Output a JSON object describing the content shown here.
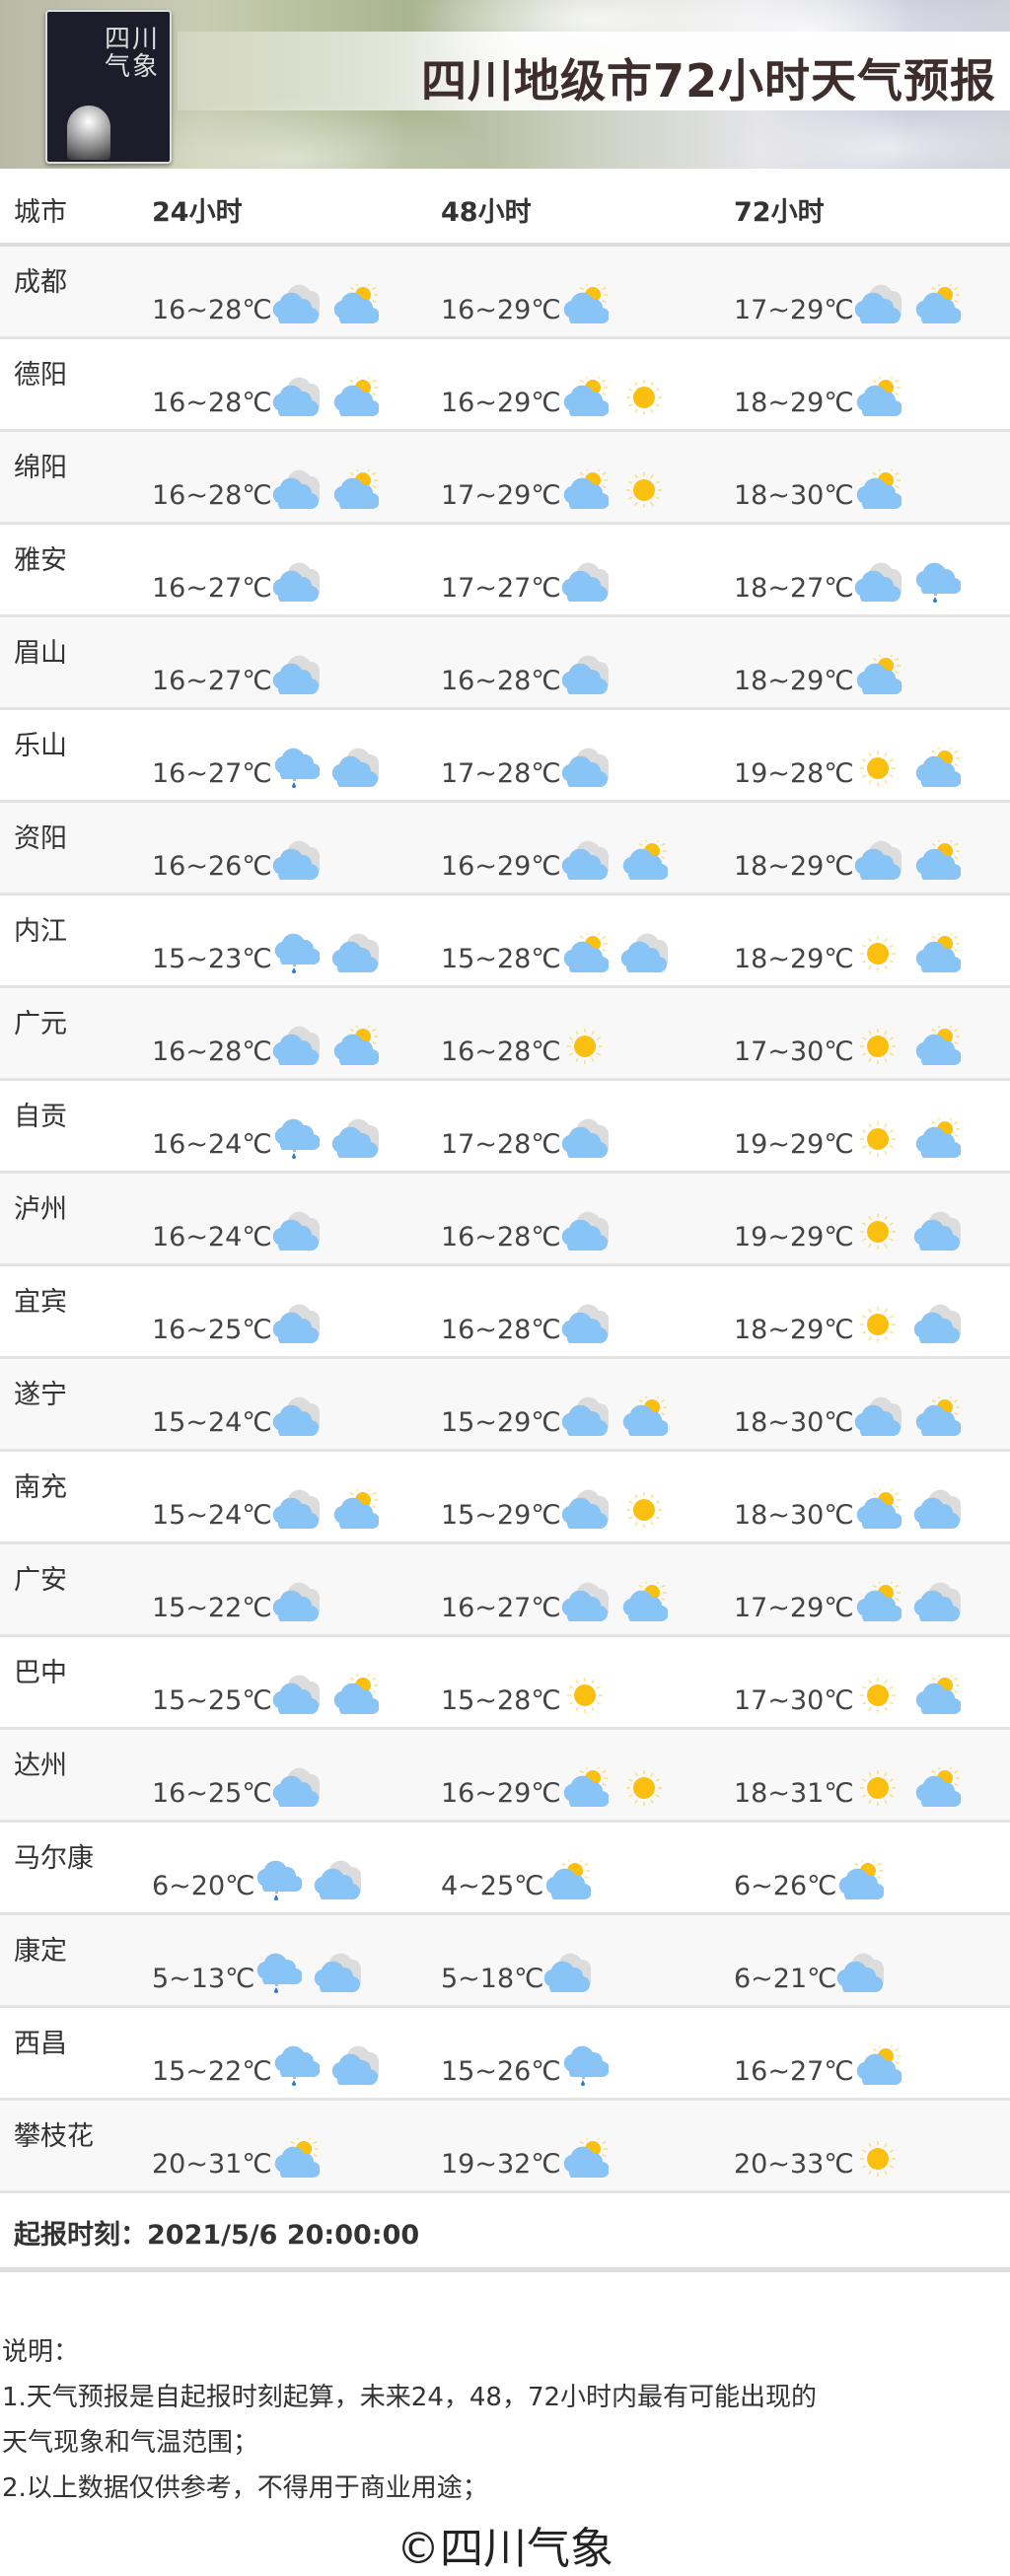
{
  "header": {
    "title": "四川地级市72小时天气预报",
    "logo_text": "四川气象"
  },
  "columns": {
    "city": "城市",
    "h24": "24小时",
    "h48": "48小时",
    "h72": "72小时"
  },
  "icon_legend": {
    "c": "cloudy-icon",
    "p": "partly-cloudy-icon",
    "s": "sunny-icon",
    "r": "shower-icon"
  },
  "colors": {
    "cloud": "#88c4f5",
    "sun": "#fbbf10",
    "back_cloud": "#dcdcdc",
    "rain": "#2c79c9"
  },
  "rows": [
    {
      "city": "成都",
      "d": [
        {
          "t": "16~28℃",
          "i": [
            "c",
            "p"
          ]
        },
        {
          "t": "16~29℃",
          "i": [
            "p"
          ]
        },
        {
          "t": "17~29℃",
          "i": [
            "c",
            "p"
          ]
        }
      ]
    },
    {
      "city": "德阳",
      "d": [
        {
          "t": "16~28℃",
          "i": [
            "c",
            "p"
          ]
        },
        {
          "t": "16~29℃",
          "i": [
            "p",
            "s"
          ]
        },
        {
          "t": "18~29℃",
          "i": [
            "p"
          ]
        }
      ]
    },
    {
      "city": "绵阳",
      "d": [
        {
          "t": "16~28℃",
          "i": [
            "c",
            "p"
          ]
        },
        {
          "t": "17~29℃",
          "i": [
            "p",
            "s"
          ]
        },
        {
          "t": "18~30℃",
          "i": [
            "p"
          ]
        }
      ]
    },
    {
      "city": "雅安",
      "d": [
        {
          "t": "16~27℃",
          "i": [
            "c"
          ]
        },
        {
          "t": "17~27℃",
          "i": [
            "c"
          ]
        },
        {
          "t": "18~27℃",
          "i": [
            "c",
            "r"
          ]
        }
      ]
    },
    {
      "city": "眉山",
      "d": [
        {
          "t": "16~27℃",
          "i": [
            "c"
          ]
        },
        {
          "t": "16~28℃",
          "i": [
            "c"
          ]
        },
        {
          "t": "18~29℃",
          "i": [
            "p"
          ]
        }
      ]
    },
    {
      "city": "乐山",
      "d": [
        {
          "t": "16~27℃",
          "i": [
            "r",
            "c"
          ]
        },
        {
          "t": "17~28℃",
          "i": [
            "c"
          ]
        },
        {
          "t": "19~28℃",
          "i": [
            "s",
            "p"
          ]
        }
      ]
    },
    {
      "city": "资阳",
      "d": [
        {
          "t": "16~26℃",
          "i": [
            "c"
          ]
        },
        {
          "t": "16~29℃",
          "i": [
            "c",
            "p"
          ]
        },
        {
          "t": "18~29℃",
          "i": [
            "c",
            "p"
          ]
        }
      ]
    },
    {
      "city": "内江",
      "d": [
        {
          "t": "15~23℃",
          "i": [
            "r",
            "c"
          ]
        },
        {
          "t": "15~28℃",
          "i": [
            "p",
            "c"
          ]
        },
        {
          "t": "18~29℃",
          "i": [
            "s",
            "p"
          ]
        }
      ]
    },
    {
      "city": "广元",
      "d": [
        {
          "t": "16~28℃",
          "i": [
            "c",
            "p"
          ]
        },
        {
          "t": "16~28℃",
          "i": [
            "s"
          ]
        },
        {
          "t": "17~30℃",
          "i": [
            "s",
            "p"
          ]
        }
      ]
    },
    {
      "city": "自贡",
      "d": [
        {
          "t": "16~24℃",
          "i": [
            "r",
            "c"
          ]
        },
        {
          "t": "17~28℃",
          "i": [
            "c"
          ]
        },
        {
          "t": "19~29℃",
          "i": [
            "s",
            "p"
          ]
        }
      ]
    },
    {
      "city": "泸州",
      "d": [
        {
          "t": "16~24℃",
          "i": [
            "c"
          ]
        },
        {
          "t": "16~28℃",
          "i": [
            "c"
          ]
        },
        {
          "t": "19~29℃",
          "i": [
            "s",
            "c"
          ]
        }
      ]
    },
    {
      "city": "宜宾",
      "d": [
        {
          "t": "16~25℃",
          "i": [
            "c"
          ]
        },
        {
          "t": "16~28℃",
          "i": [
            "c"
          ]
        },
        {
          "t": "18~29℃",
          "i": [
            "s",
            "c"
          ]
        }
      ]
    },
    {
      "city": "遂宁",
      "d": [
        {
          "t": "15~24℃",
          "i": [
            "c"
          ]
        },
        {
          "t": "15~29℃",
          "i": [
            "c",
            "p"
          ]
        },
        {
          "t": "18~30℃",
          "i": [
            "c",
            "p"
          ]
        }
      ]
    },
    {
      "city": "南充",
      "d": [
        {
          "t": "15~24℃",
          "i": [
            "c",
            "p"
          ]
        },
        {
          "t": "15~29℃",
          "i": [
            "c",
            "s"
          ]
        },
        {
          "t": "18~30℃",
          "i": [
            "p",
            "c"
          ]
        }
      ]
    },
    {
      "city": "广安",
      "d": [
        {
          "t": "15~22℃",
          "i": [
            "c"
          ]
        },
        {
          "t": "16~27℃",
          "i": [
            "c",
            "p"
          ]
        },
        {
          "t": "17~29℃",
          "i": [
            "p",
            "c"
          ]
        }
      ]
    },
    {
      "city": "巴中",
      "d": [
        {
          "t": "15~25℃",
          "i": [
            "c",
            "p"
          ]
        },
        {
          "t": "15~28℃",
          "i": [
            "s"
          ]
        },
        {
          "t": "17~30℃",
          "i": [
            "s",
            "p"
          ]
        }
      ]
    },
    {
      "city": "达州",
      "d": [
        {
          "t": "16~25℃",
          "i": [
            "c"
          ]
        },
        {
          "t": "16~29℃",
          "i": [
            "p",
            "s"
          ]
        },
        {
          "t": "18~31℃",
          "i": [
            "s",
            "p"
          ]
        }
      ]
    },
    {
      "city": "马尔康",
      "d": [
        {
          "t": "6~20℃",
          "i": [
            "r",
            "c"
          ]
        },
        {
          "t": "4~25℃",
          "i": [
            "p"
          ]
        },
        {
          "t": "6~26℃",
          "i": [
            "p"
          ]
        }
      ]
    },
    {
      "city": "康定",
      "d": [
        {
          "t": "5~13℃",
          "i": [
            "r",
            "c"
          ]
        },
        {
          "t": "5~18℃",
          "i": [
            "c"
          ]
        },
        {
          "t": "6~21℃",
          "i": [
            "c"
          ]
        }
      ]
    },
    {
      "city": "西昌",
      "d": [
        {
          "t": "15~22℃",
          "i": [
            "r",
            "c"
          ]
        },
        {
          "t": "15~26℃",
          "i": [
            "r"
          ]
        },
        {
          "t": "16~27℃",
          "i": [
            "p"
          ]
        }
      ]
    },
    {
      "city": "攀枝花",
      "d": [
        {
          "t": "20~31℃",
          "i": [
            "p"
          ]
        },
        {
          "t": "19~32℃",
          "i": [
            "p"
          ]
        },
        {
          "t": "20~33℃",
          "i": [
            "s"
          ]
        }
      ]
    }
  ],
  "footer": {
    "issue_time": "起报时刻：2021/5/6 20:00:00"
  },
  "notes": {
    "title": "说明：",
    "line1": "1.天气预报是自起报时刻起算，未来24，48，72小时内最有可能出现的",
    "line1b": "天气现象和气温范围；",
    "line2": "2.以上数据仅供参考，不得用于商业用途；"
  },
  "copyright": "©四川气象"
}
